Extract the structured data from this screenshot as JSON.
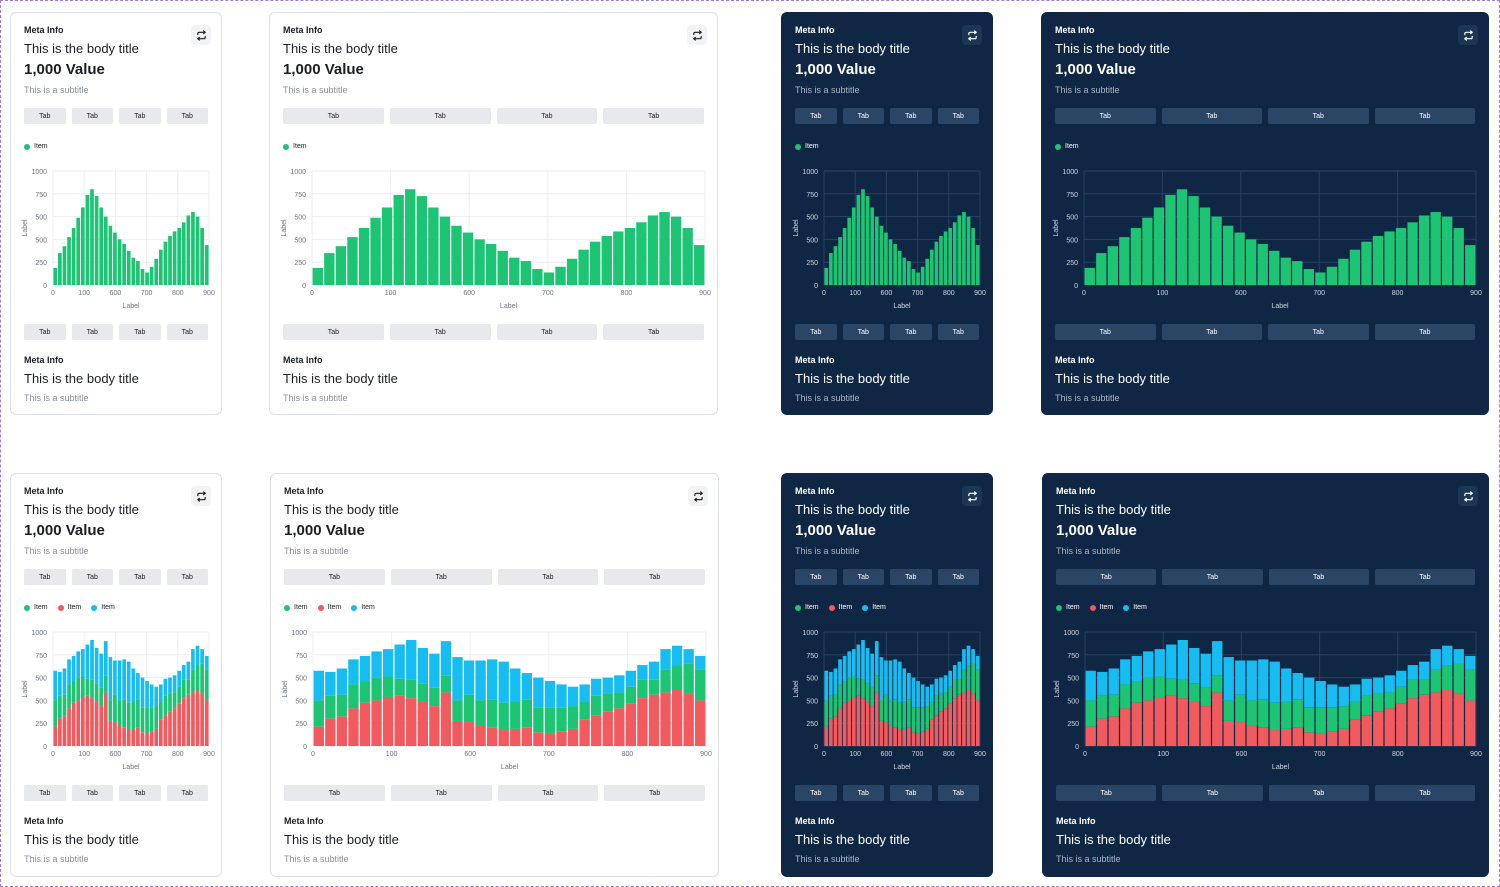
{
  "card": {
    "meta": "Meta Info",
    "body_title": "This is the body title",
    "value": "1,000 Value",
    "subtitle": "This is a subtitle",
    "tab_label": "Tab",
    "legend_label": "Item"
  },
  "colors": {
    "green": "#1cc474",
    "red": "#f15a5f",
    "blue": "#17bdf0",
    "dark_bg": "#0f2744",
    "light_bg": "#ffffff"
  },
  "icons": {
    "refresh": "refresh-icon"
  },
  "chart_data": {
    "type": "bar",
    "ylabel": "Label",
    "xlabel": "Label",
    "yticks": [
      "0",
      "250",
      "500",
      "500",
      "750",
      "1000"
    ],
    "ylim": [
      0,
      1000
    ],
    "xticks": [
      "0",
      "100",
      "600",
      "700",
      "800",
      "900"
    ],
    "single_series": {
      "name": "Item",
      "values": [
        150,
        280,
        340,
        420,
        500,
        590,
        680,
        790,
        840,
        780,
        680,
        600,
        520,
        460,
        400,
        360,
        300,
        240,
        210,
        140,
        110,
        160,
        230,
        310,
        380,
        430,
        470,
        500,
        550,
        610,
        640,
        600,
        500,
        350
      ]
    },
    "stacked_series": [
      {
        "name": "Item",
        "color_key": "red",
        "values": [
          170,
          240,
          260,
          330,
          380,
          400,
          430,
          440,
          420,
          390,
          350,
          470,
          220,
          210,
          180,
          160,
          140,
          150,
          160,
          120,
          110,
          130,
          150,
          230,
          270,
          300,
          330,
          370,
          420,
          450,
          470,
          500,
          460,
          400
        ]
      },
      {
        "name": "Item",
        "color_key": "green",
        "values": [
          230,
          200,
          190,
          210,
          190,
          200,
          180,
          150,
          160,
          160,
          160,
          150,
          180,
          240,
          220,
          250,
          240,
          240,
          250,
          220,
          230,
          210,
          200,
          160,
          170,
          160,
          140,
          150,
          160,
          130,
          200,
          210,
          260,
          270
        ]
      },
      {
        "name": "Item",
        "color_key": "blue",
        "values": [
          260,
          210,
          230,
          220,
          220,
          230,
          240,
          300,
          350,
          310,
          300,
          300,
          380,
          300,
          350,
          350,
          360,
          290,
          230,
          260,
          230,
          200,
          170,
          150,
          150,
          140,
          150,
          140,
          130,
          160,
          180,
          170,
          130,
          120
        ]
      }
    ]
  }
}
